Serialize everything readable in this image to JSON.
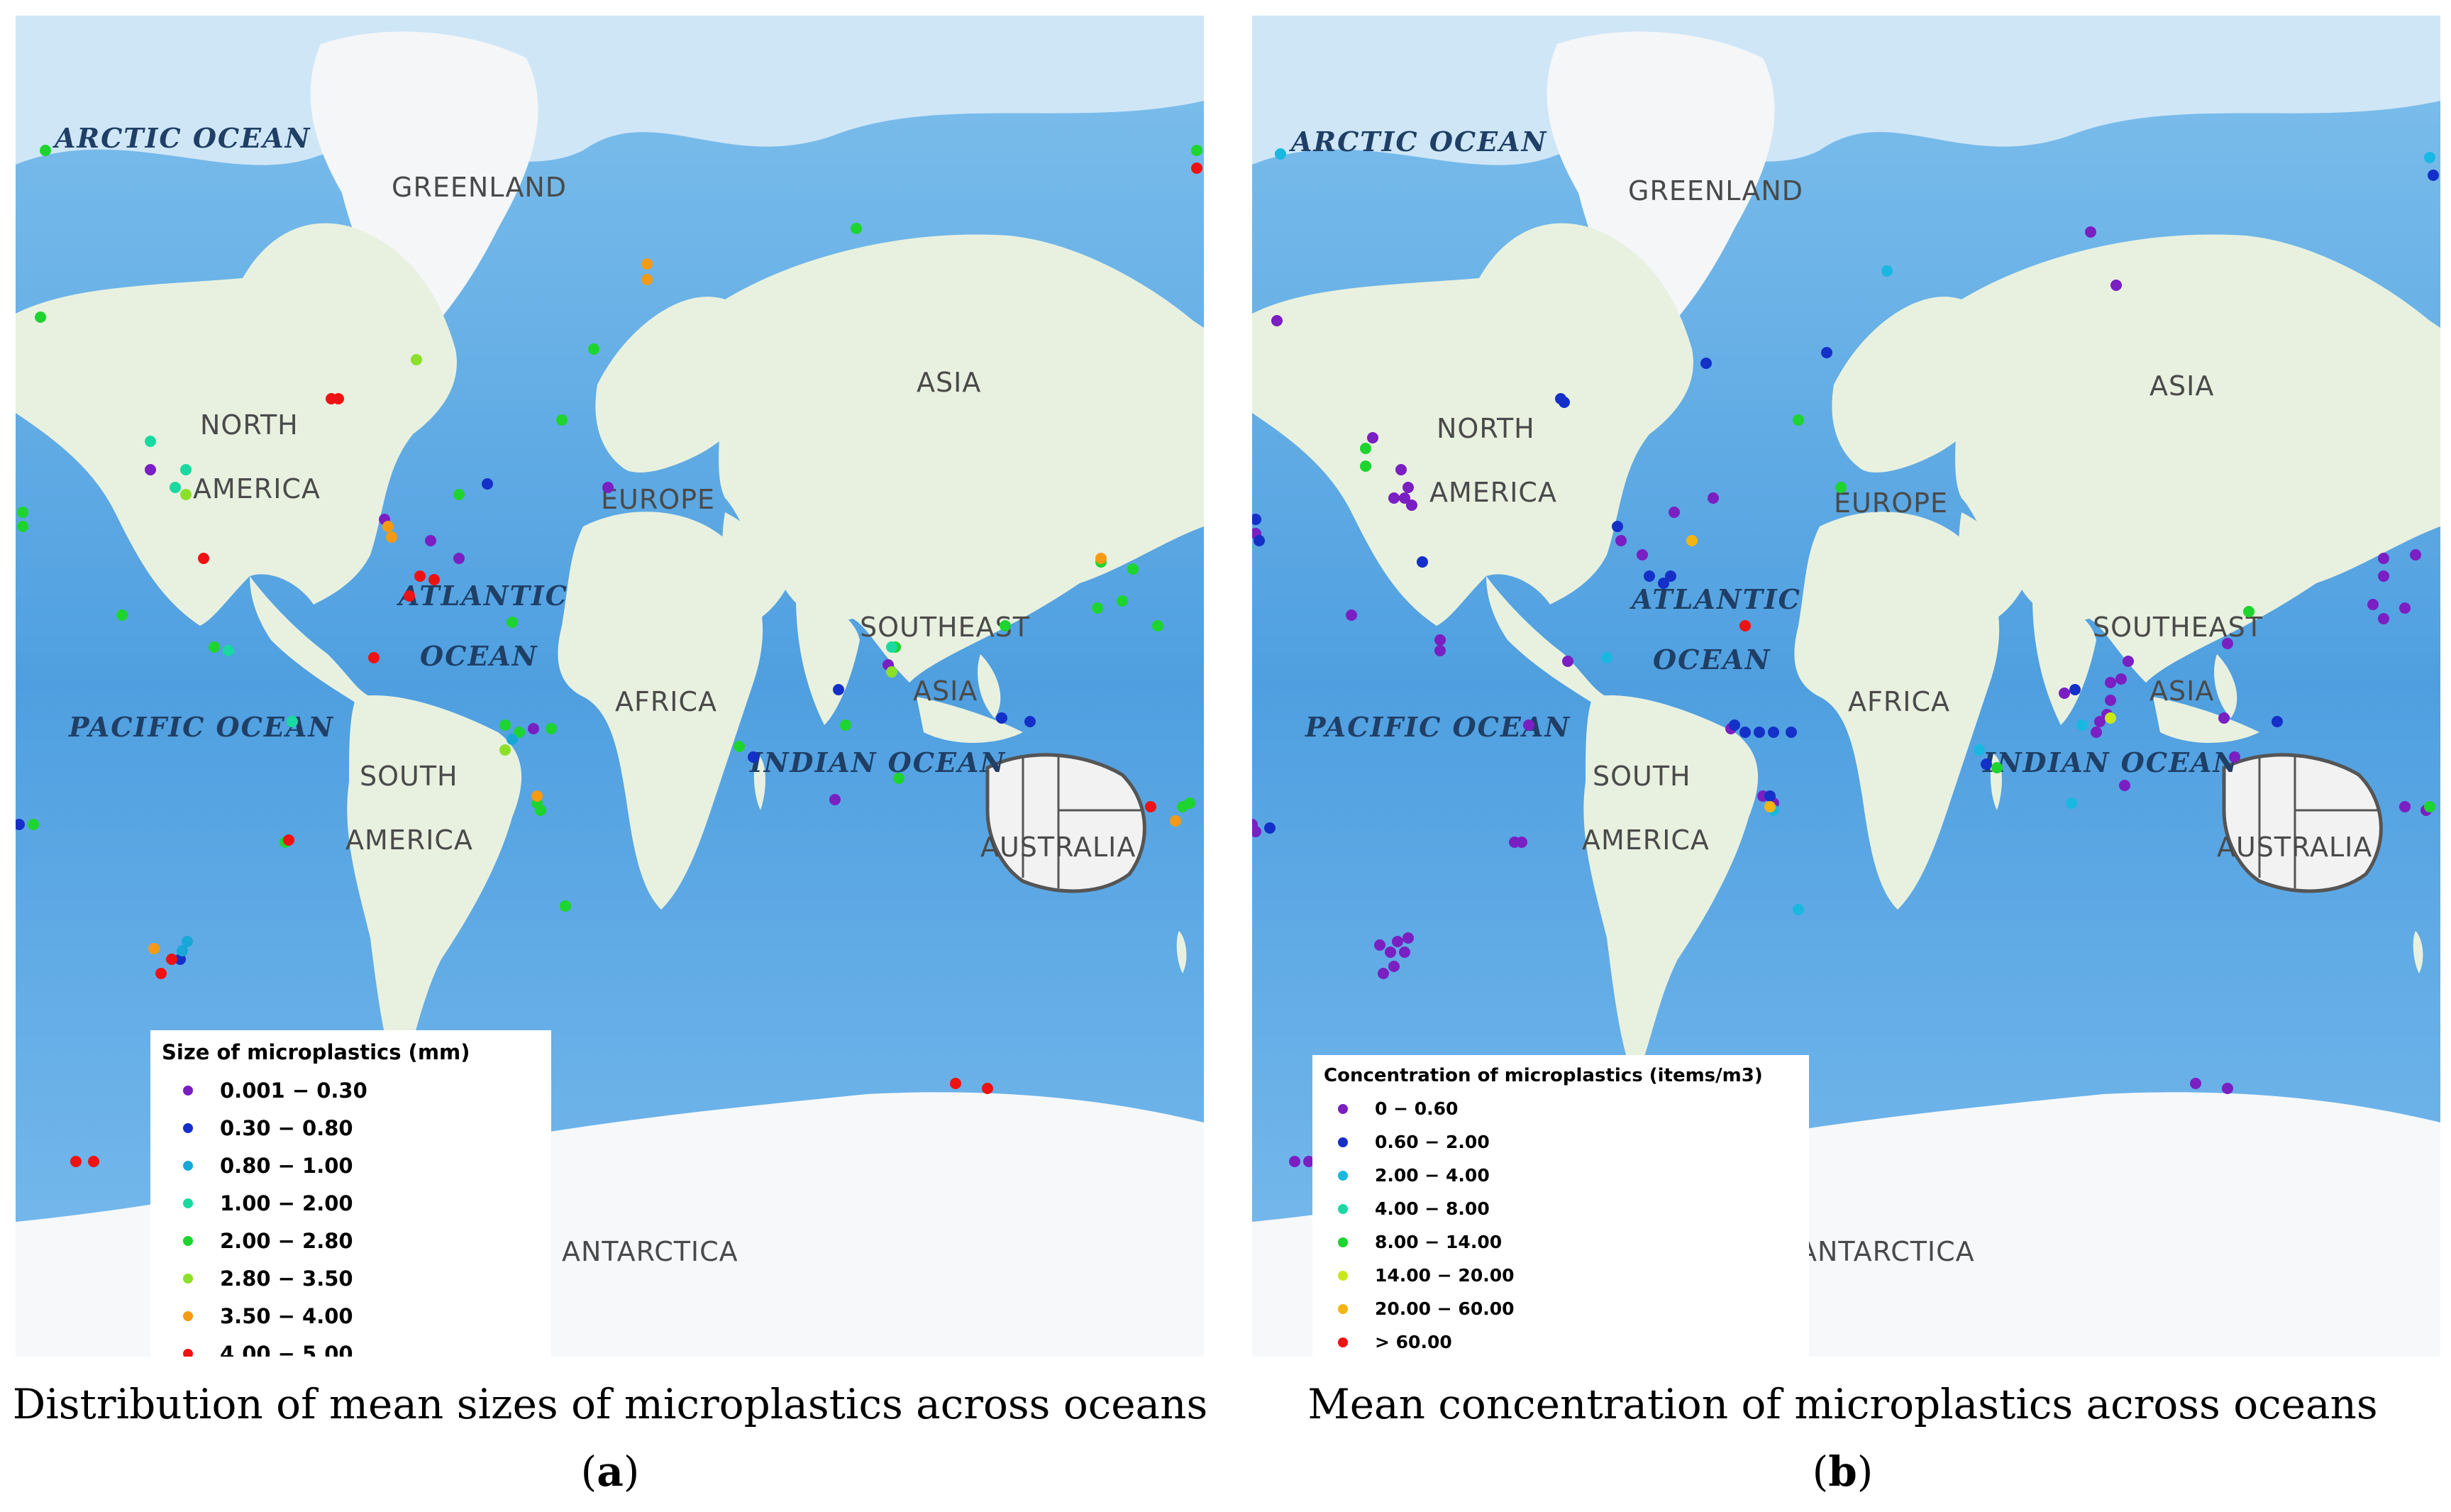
{
  "panels": [
    {
      "id": "a",
      "labels": {
        "greenland": "GREENLAND",
        "north": "NORTH",
        "america": "AMERICA",
        "europe": "EUROPE",
        "asia": "ASIA",
        "southeast": "SOUTHEAST",
        "asia2": "ASIA",
        "africa": "AFRICA",
        "south": "SOUTH",
        "south_america": "AMERICA",
        "australia": "AUSTRALIA",
        "antarctica": "ANTARCTICA"
      },
      "oceans": {
        "arctic": "ARCTIC OCEAN",
        "atlantic1": "ATLANTIC",
        "atlantic2": "OCEAN",
        "pacific": "PACIFIC OCEAN",
        "indian": "INDIAN OCEAN"
      },
      "legend": {
        "title": "Size of microplastics (mm)",
        "items": [
          {
            "label": "0.001 − 0.30",
            "color": "#7a1fc2"
          },
          {
            "label": "0.30 − 0.80",
            "color": "#1430c8"
          },
          {
            "label": "0.80 − 1.00",
            "color": "#18a8d8"
          },
          {
            "label": "1.00 − 2.00",
            "color": "#1ad9a0"
          },
          {
            "label": "2.00 − 2.80",
            "color": "#1ed42e"
          },
          {
            "label": "2.80 − 3.50",
            "color": "#8be02a"
          },
          {
            "label": "3.50 − 4.00",
            "color": "#f59a12"
          },
          {
            "label": "4.00 − 5.00",
            "color": "#ee1212"
          }
        ]
      },
      "caption": "Distribution of mean sizes of microplastics across oceans",
      "sublabel": "a"
    },
    {
      "id": "b",
      "labels": {
        "greenland": "GREENLAND",
        "north": "NORTH",
        "america": "AMERICA",
        "europe": "EUROPE",
        "asia": "ASIA",
        "southeast": "SOUTHEAST",
        "asia2": "ASIA",
        "africa": "AFRICA",
        "south": "SOUTH",
        "south_america": "AMERICA",
        "australia": "AUSTRALIA",
        "antarctica": "ANTARCTICA"
      },
      "oceans": {
        "arctic": "ARCTIC OCEAN",
        "atlantic1": "ATLANTIC",
        "atlantic2": "OCEAN",
        "pacific": "PACIFIC OCEAN",
        "indian": "INDIAN OCEAN"
      },
      "legend": {
        "title": "Concentration of microplastics (items/m3)",
        "items": [
          {
            "label": "0 − 0.60",
            "color": "#7a1fc2"
          },
          {
            "label": "0.60 − 2.00",
            "color": "#1430c8"
          },
          {
            "label": "2.00 − 4.00",
            "color": "#18b8e0"
          },
          {
            "label": "4.00 − 8.00",
            "color": "#1ad9a0"
          },
          {
            "label": "8.00 − 14.00",
            "color": "#1ed42e"
          },
          {
            "label": "14.00 − 20.00",
            "color": "#c8e81a"
          },
          {
            "label": "20.00 − 60.00",
            "color": "#f5b412"
          },
          {
            "label": "> 60.00",
            "color": "#ee1212"
          }
        ]
      },
      "caption": "Mean concentration of microplastics across oceans",
      "sublabel": "b"
    }
  ]
}
